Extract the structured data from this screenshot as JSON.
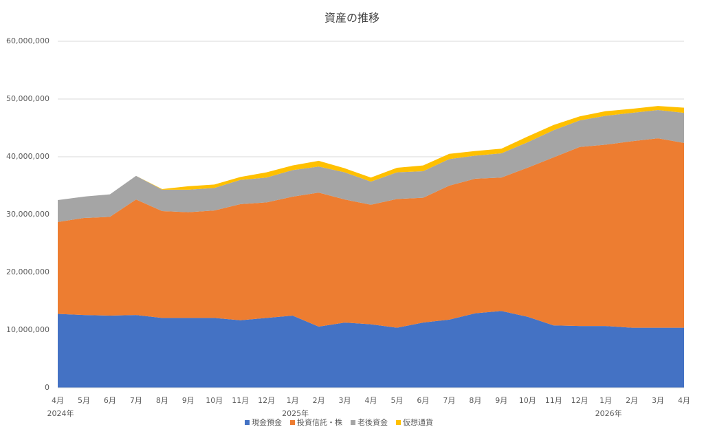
{
  "chart_data": {
    "type": "stacked_area",
    "title": "資産の推移",
    "categories": [
      "4月",
      "5月",
      "6月",
      "7月",
      "8月",
      "9月",
      "10月",
      "11月",
      "12月",
      "1月",
      "2月",
      "3月",
      "4月",
      "5月",
      "6月",
      "7月",
      "8月",
      "9月",
      "10月",
      "11月",
      "12月",
      "1月",
      "2月",
      "3月",
      "4月"
    ],
    "year_labels": [
      "2024年",
      null,
      null,
      null,
      null,
      null,
      null,
      null,
      null,
      "2025年",
      null,
      null,
      null,
      null,
      null,
      null,
      null,
      null,
      null,
      null,
      null,
      "2026年",
      null,
      null,
      null
    ],
    "series": [
      {
        "name": "現金預金",
        "color": "#4472c4",
        "values": [
          12800000,
          12600000,
          12500000,
          12600000,
          12100000,
          12100000,
          12100000,
          11700000,
          12100000,
          12500000,
          10600000,
          11300000,
          11000000,
          10400000,
          11300000,
          11800000,
          12900000,
          13300000,
          12300000,
          10800000,
          10700000,
          10700000,
          10400000,
          10400000,
          10400000
        ]
      },
      {
        "name": "投資信託・株",
        "color": "#ed7d31",
        "values": [
          15900000,
          16800000,
          17100000,
          20000000,
          18500000,
          18300000,
          18600000,
          20100000,
          20000000,
          20600000,
          23200000,
          21300000,
          20700000,
          22300000,
          21600000,
          23200000,
          23300000,
          23100000,
          25800000,
          29100000,
          31000000,
          31400000,
          32300000,
          32800000,
          32000000
        ]
      },
      {
        "name": "老後資金",
        "color": "#a5a5a5",
        "values": [
          3800000,
          3700000,
          3900000,
          4100000,
          3700000,
          3900000,
          3900000,
          4200000,
          4300000,
          4600000,
          4500000,
          4700000,
          4000000,
          4600000,
          4600000,
          4600000,
          4000000,
          4200000,
          4400000,
          4700000,
          4600000,
          5000000,
          4900000,
          4900000,
          5200000
        ]
      },
      {
        "name": "仮想通貨",
        "color": "#ffc000",
        "values": [
          0,
          0,
          0,
          0,
          100000,
          600000,
          600000,
          500000,
          900000,
          800000,
          1000000,
          700000,
          700000,
          800000,
          1000000,
          900000,
          800000,
          800000,
          1000000,
          900000,
          700000,
          800000,
          700000,
          700000,
          900000
        ]
      }
    ],
    "ylim": [
      0,
      60000000
    ],
    "yticks": [
      0,
      {
        "value": 10000000,
        "label": "10,000,000"
      },
      {
        "value": 20000000,
        "label": "20,000,000"
      },
      {
        "value": 30000000,
        "label": "30,000,000"
      },
      {
        "value": 40000000,
        "label": "40,000,000"
      },
      {
        "value": 50000000,
        "label": "50,000,000"
      },
      {
        "value": 60000000,
        "label": "60,000,000"
      }
    ],
    "grid": true,
    "legend": "bottom"
  }
}
